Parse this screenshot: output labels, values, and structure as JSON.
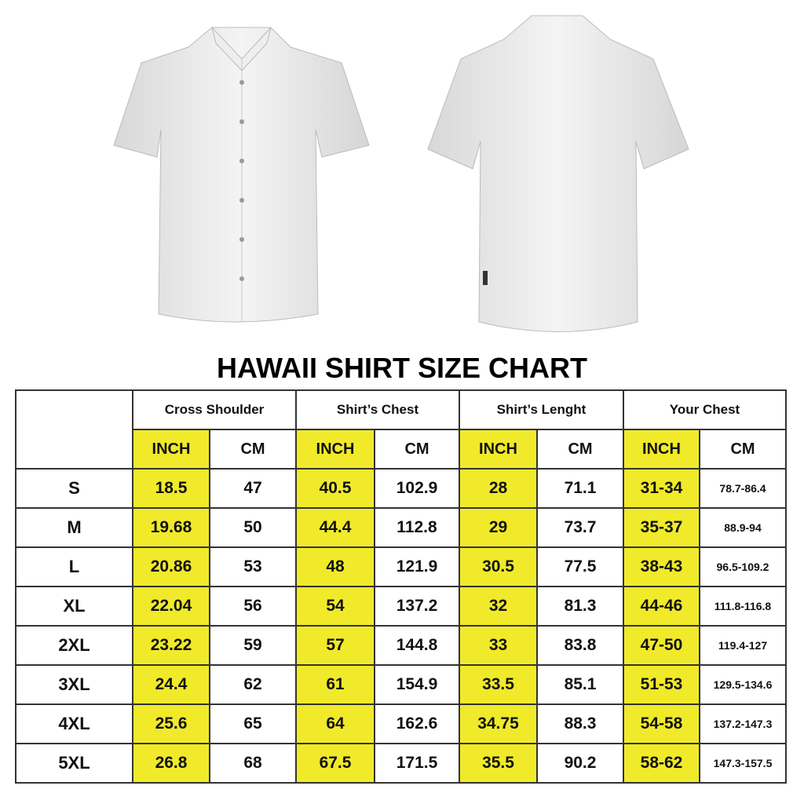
{
  "title": "HAWAII SHIRT SIZE CHART",
  "colors": {
    "highlight": "#f0ea2a",
    "border": "#333333"
  },
  "images": [
    "shirt-front",
    "shirt-back"
  ],
  "groups": [
    "Cross Shoulder",
    "Shirt’s Chest",
    "Shirt’s Lenght",
    "Your Chest"
  ],
  "units": [
    "INCH",
    "CM"
  ],
  "rows": [
    {
      "size": "S",
      "values": [
        "18.5",
        "47",
        "40.5",
        "102.9",
        "28",
        "71.1",
        "31-34",
        "78.7-86.4"
      ]
    },
    {
      "size": "M",
      "values": [
        "19.68",
        "50",
        "44.4",
        "112.8",
        "29",
        "73.7",
        "35-37",
        "88.9-94"
      ]
    },
    {
      "size": "L",
      "values": [
        "20.86",
        "53",
        "48",
        "121.9",
        "30.5",
        "77.5",
        "38-43",
        "96.5-109.2"
      ]
    },
    {
      "size": "XL",
      "values": [
        "22.04",
        "56",
        "54",
        "137.2",
        "32",
        "81.3",
        "44-46",
        "111.8-116.8"
      ]
    },
    {
      "size": "2XL",
      "values": [
        "23.22",
        "59",
        "57",
        "144.8",
        "33",
        "83.8",
        "47-50",
        "119.4-127"
      ]
    },
    {
      "size": "3XL",
      "values": [
        "24.4",
        "62",
        "61",
        "154.9",
        "33.5",
        "85.1",
        "51-53",
        "129.5-134.6"
      ]
    },
    {
      "size": "4XL",
      "values": [
        "25.6",
        "65",
        "64",
        "162.6",
        "34.75",
        "88.3",
        "54-58",
        "137.2-147.3"
      ]
    },
    {
      "size": "5XL",
      "values": [
        "26.8",
        "68",
        "67.5",
        "171.5",
        "35.5",
        "90.2",
        "58-62",
        "147.3-157.5"
      ]
    }
  ]
}
